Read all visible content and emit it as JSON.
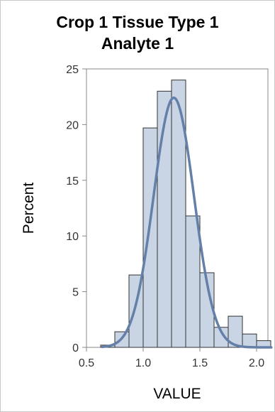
{
  "chart_data": {
    "type": "bar",
    "subtype": "histogram-with-normal-curve",
    "title_line1": "Crop 1 Tissue Type 1",
    "title_line2": "Analyte 1",
    "xlabel": "VALUE",
    "ylabel": "Percent",
    "xlim": [
      0.5,
      2.1
    ],
    "ylim": [
      0,
      25
    ],
    "x_ticks": [
      0.5,
      1.0,
      1.5,
      2.0
    ],
    "x_tick_labels": [
      "0.5",
      "1.0",
      "1.5",
      "2.0"
    ],
    "y_ticks": [
      0,
      5,
      10,
      15,
      20,
      25
    ],
    "y_tick_labels": [
      "0",
      "5",
      "10",
      "15",
      "20",
      "25"
    ],
    "bin_width": 0.125,
    "bins": [
      {
        "x0": 0.625,
        "x1": 0.75,
        "value": 0.2
      },
      {
        "x0": 0.75,
        "x1": 0.875,
        "value": 1.4
      },
      {
        "x0": 0.875,
        "x1": 1.0,
        "value": 6.5
      },
      {
        "x0": 1.0,
        "x1": 1.125,
        "value": 19.7
      },
      {
        "x0": 1.125,
        "x1": 1.25,
        "value": 23.0
      },
      {
        "x0": 1.25,
        "x1": 1.375,
        "value": 24.0
      },
      {
        "x0": 1.375,
        "x1": 1.5,
        "value": 11.8
      },
      {
        "x0": 1.5,
        "x1": 1.625,
        "value": 6.7
      },
      {
        "x0": 1.625,
        "x1": 1.75,
        "value": 1.8
      },
      {
        "x0": 1.75,
        "x1": 1.875,
        "value": 2.8
      },
      {
        "x0": 1.875,
        "x1": 2.0,
        "value": 1.2
      },
      {
        "x0": 2.0,
        "x1": 2.125,
        "value": 0.6
      }
    ],
    "normal_curve": {
      "mean": 1.27,
      "sd": 0.178,
      "scale": 10.0,
      "x_from": 0.64,
      "x_to": 2.13
    },
    "colors": {
      "bar_fill": "#c9d5e5",
      "bar_stroke": "#333333",
      "curve": "#6480a8",
      "axis": "#888888"
    },
    "grid": false
  }
}
